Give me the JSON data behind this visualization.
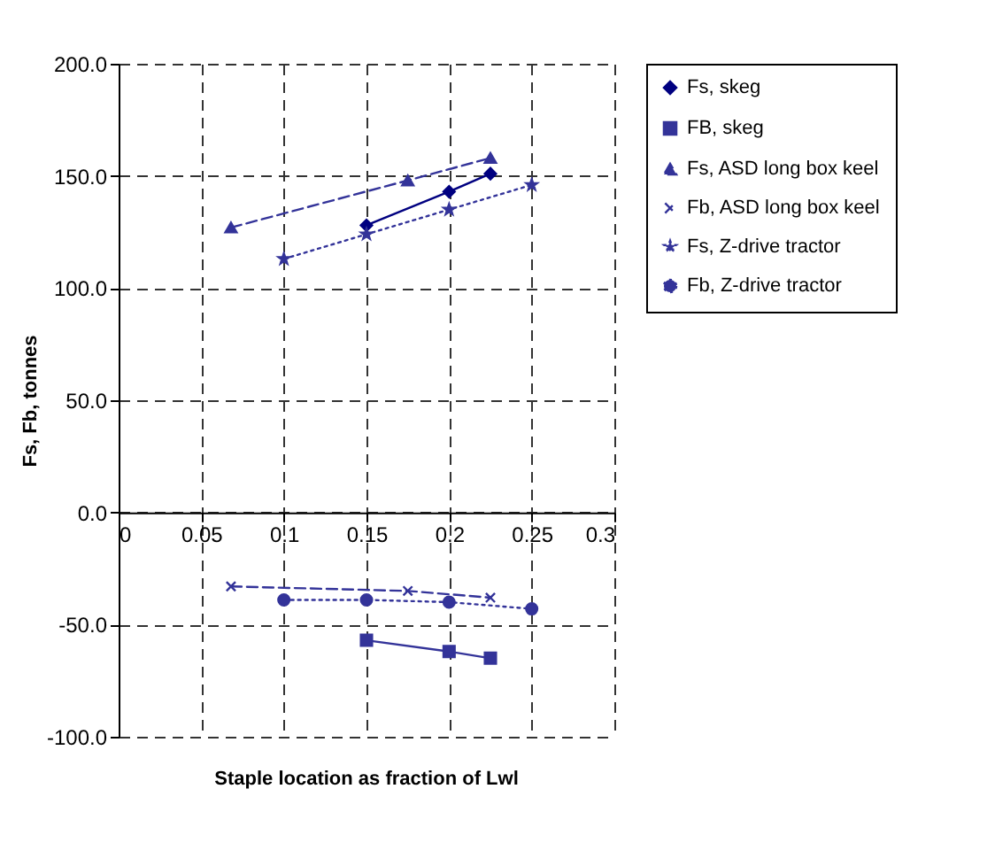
{
  "chart_data": {
    "type": "line",
    "xlabel": "Staple location as fraction of Lwl",
    "ylabel": "Fs, Fb, tonnes",
    "xlim": [
      0,
      0.3
    ],
    "xticks": [
      0,
      0.05,
      0.1,
      0.15,
      0.2,
      0.25,
      0.3
    ],
    "ylim": [
      -100,
      200
    ],
    "yticks": [
      {
        "value": -100,
        "label": "-100.0"
      },
      {
        "value": -50,
        "label": "-50.0"
      },
      {
        "value": 0,
        "label": "0.0"
      },
      {
        "value": 50,
        "label": "50.0"
      },
      {
        "value": 100,
        "label": "100.0"
      },
      {
        "value": 150,
        "label": "150.0"
      },
      {
        "value": 200,
        "label": "200.0"
      }
    ],
    "grid": true,
    "legend": "right",
    "series": [
      {
        "name": "Fs, skeg",
        "color": "#000080",
        "marker": "diamond",
        "line_style": "solid",
        "x": [
          0.15,
          0.2,
          0.225
        ],
        "values": [
          128,
          143,
          151
        ]
      },
      {
        "name": "FB, skeg",
        "color": "#333399",
        "marker": "square",
        "line_style": "solid",
        "x": [
          0.15,
          0.2,
          0.225
        ],
        "values": [
          -57,
          -62,
          -65
        ]
      },
      {
        "name": "Fs, ASD long box keel",
        "color": "#333399",
        "marker": "triangle",
        "line_style": "dashed",
        "x": [
          0.068,
          0.175,
          0.225
        ],
        "values": [
          127,
          148,
          158
        ]
      },
      {
        "name": "Fb, ASD long box keel",
        "color": "#333399",
        "marker": "cross",
        "line_style": "dashed",
        "x": [
          0.068,
          0.175,
          0.225
        ],
        "values": [
          -33,
          -35,
          -38
        ]
      },
      {
        "name": "Fs, Z-drive tractor",
        "color": "#333399",
        "marker": "star",
        "line_style": "dotted",
        "x": [
          0.1,
          0.15,
          0.2,
          0.25
        ],
        "values": [
          113,
          124,
          135,
          146
        ]
      },
      {
        "name": "Fb, Z-drive tractor",
        "color": "#333399",
        "marker": "circle",
        "line_style": "dotted",
        "x": [
          0.1,
          0.15,
          0.2,
          0.25
        ],
        "values": [
          -39,
          -39,
          -40,
          -43
        ]
      }
    ]
  }
}
